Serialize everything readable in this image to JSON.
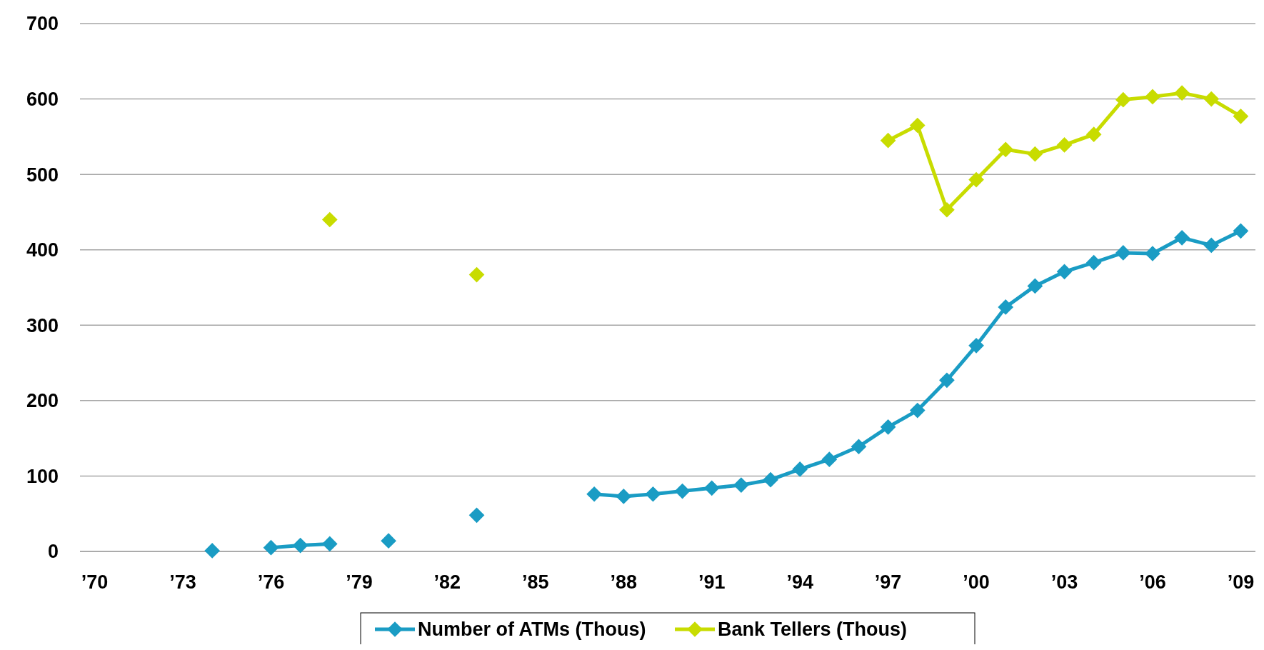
{
  "chart_data": {
    "type": "line",
    "x": [
      1974,
      1975,
      1976,
      1977,
      1978,
      1979,
      1980,
      1981,
      1982,
      1983,
      1984,
      1985,
      1986,
      1987,
      1988,
      1989,
      1990,
      1991,
      1992,
      1993,
      1994,
      1995,
      1996,
      1997,
      1998,
      1999,
      2000,
      2001,
      2002,
      2003,
      2004,
      2005,
      2006,
      2007,
      2008,
      2009
    ],
    "series": [
      {
        "name": "Number of ATMs (Thous)",
        "color": "#1a9cc4",
        "values": [
          1,
          null,
          5,
          8,
          10,
          null,
          14,
          null,
          null,
          48,
          null,
          null,
          null,
          76,
          73,
          76,
          80,
          84,
          88,
          95,
          109,
          122,
          139,
          165,
          187,
          227,
          273,
          324,
          352,
          371,
          383,
          396,
          395,
          416,
          406,
          425
        ]
      },
      {
        "name": "Bank Tellers (Thous)",
        "color": "#c8dc00",
        "values": [
          null,
          null,
          null,
          null,
          440,
          null,
          null,
          null,
          null,
          367,
          null,
          null,
          null,
          null,
          null,
          null,
          null,
          null,
          null,
          null,
          null,
          null,
          null,
          545,
          565,
          453,
          493,
          533,
          527,
          539,
          553,
          599,
          603,
          608,
          600,
          577
        ]
      }
    ],
    "xlim": [
      1969.5,
      2009.5
    ],
    "xticks": [
      {
        "value": 1970,
        "label": "’70"
      },
      {
        "value": 1973,
        "label": "’73"
      },
      {
        "value": 1976,
        "label": "’76"
      },
      {
        "value": 1979,
        "label": "’79"
      },
      {
        "value": 1982,
        "label": "’82"
      },
      {
        "value": 1985,
        "label": "’85"
      },
      {
        "value": 1988,
        "label": "’88"
      },
      {
        "value": 1991,
        "label": "’91"
      },
      {
        "value": 1994,
        "label": "’94"
      },
      {
        "value": 1997,
        "label": "’97"
      },
      {
        "value": 2000,
        "label": "’00"
      },
      {
        "value": 2003,
        "label": "’03"
      },
      {
        "value": 2006,
        "label": "’06"
      },
      {
        "value": 2009,
        "label": "’09"
      }
    ],
    "ylim": [
      0,
      700
    ],
    "yticks": [
      0,
      100,
      200,
      300,
      400,
      500,
      600,
      700
    ],
    "grid": "y",
    "legend": "bottom",
    "marker": "diamond",
    "line_style": "solid"
  }
}
